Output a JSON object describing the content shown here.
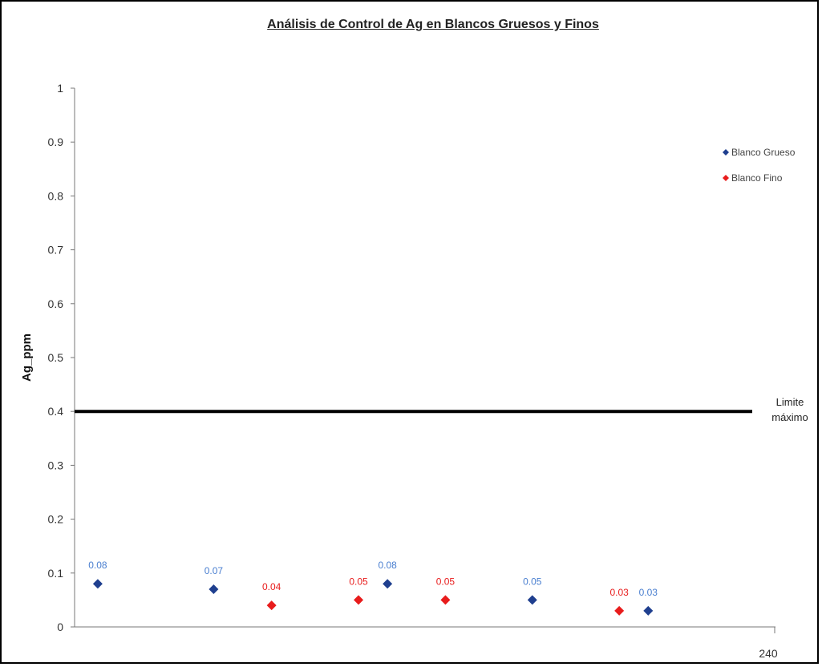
{
  "chart_data": {
    "type": "scatter",
    "title": "Análisis de Control de Ag en Blancos Gruesos y Finos",
    "xlabel": "",
    "ylabel": "Ag_ppm",
    "xlim": [
      0,
      240
    ],
    "ylim": [
      0,
      1
    ],
    "x_tick_labels": [
      "240"
    ],
    "y_ticks": [
      0,
      0.1,
      0.2,
      0.3,
      0.4,
      0.5,
      0.6,
      0.7,
      0.8,
      0.9,
      1
    ],
    "y_tick_labels": [
      "0",
      "0.1",
      "0.2",
      "0.3",
      "0.4",
      "0.5",
      "0.6",
      "0.7",
      "0.8",
      "0.9",
      "1"
    ],
    "series": [
      {
        "name": "Blanco Grueso",
        "color": "#1f3f8f",
        "label_color": "#4a7fd0",
        "x": [
          8,
          48,
          108,
          158,
          198
        ],
        "y": [
          0.08,
          0.07,
          0.08,
          0.05,
          0.03
        ],
        "labels": [
          "0.08",
          "0.07",
          "0.08",
          "0.05",
          "0.03"
        ]
      },
      {
        "name": "Blanco Fino",
        "color": "#e81c1c",
        "label_color": "#e81c1c",
        "x": [
          68,
          98,
          128,
          188
        ],
        "y": [
          0.04,
          0.05,
          0.05,
          0.03
        ],
        "labels": [
          "0.04",
          "0.05",
          "0.05",
          "0.03"
        ]
      }
    ],
    "reference_line": {
      "y": 0.4,
      "label_line1": "Limite",
      "label_line2": "máximo",
      "color": "#000000"
    },
    "legend_position": "top-right",
    "grid": false
  }
}
